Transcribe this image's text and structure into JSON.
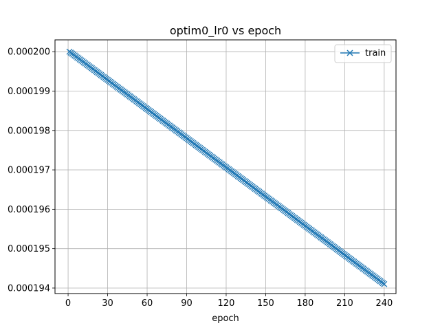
{
  "chart_data": {
    "type": "line",
    "title": "optim0_lr0 vs epoch",
    "xlabel": "epoch",
    "ylabel": "",
    "xlim": [
      -9.95,
      248.95
    ],
    "ylim": [
      0.00019386,
      0.0002003
    ],
    "xticks": [
      0,
      30,
      60,
      90,
      120,
      150,
      180,
      210,
      240
    ],
    "xtick_labels": [
      "0",
      "30",
      "60",
      "90",
      "120",
      "150",
      "180",
      "210",
      "240"
    ],
    "yticks": [
      0.000194,
      0.000195,
      0.000196,
      0.000197,
      0.000198,
      0.000199,
      0.0002
    ],
    "ytick_labels": [
      "0.000194",
      "0.000195",
      "0.000196",
      "0.000197",
      "0.000198",
      "0.000199",
      "0.000200"
    ],
    "grid": true,
    "legend_position": "top-right",
    "series": [
      {
        "name": "train",
        "color": "#1f77b4",
        "marker": "x",
        "x_start": 1,
        "x_end": 240,
        "y_start": 0.0002,
        "y_end": 0.0001941
      }
    ]
  }
}
